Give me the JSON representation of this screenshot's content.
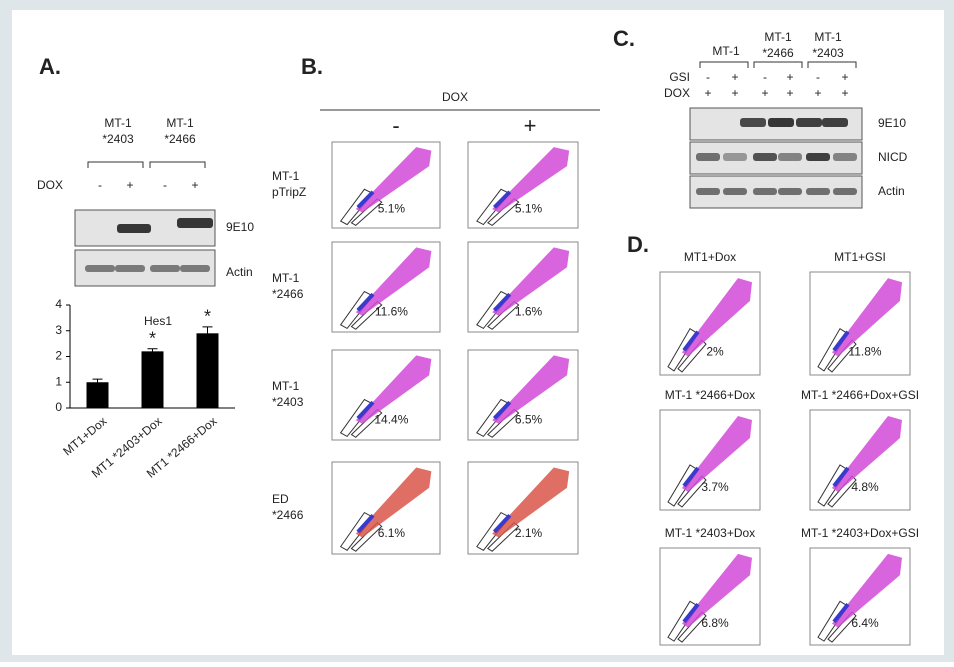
{
  "chart_data": {
    "type": "bar",
    "title": "Hes1",
    "categories": [
      "MT1+Dox",
      "MT1 *2403+Dox",
      "MT1 *2466+Dox"
    ],
    "values": [
      1,
      2.2,
      2.9
    ],
    "errors": [
      0.12,
      0.1,
      0.25
    ],
    "annotations": [
      null,
      "*",
      "*"
    ],
    "ylim": [
      0,
      4
    ],
    "yticks": [
      0,
      1,
      2,
      3,
      4
    ],
    "color": "#000000"
  },
  "panel_a": {
    "label": "A.",
    "lanes": [
      [
        "MT-1",
        "*2403"
      ],
      [
        "MT-1",
        "*2466"
      ]
    ],
    "treatment": "DOX",
    "signs": [
      "-",
      "+",
      "-",
      "+"
    ],
    "blots": [
      "9E10",
      "Actin"
    ]
  },
  "panel_b": {
    "label": "B.",
    "treatment": "DOX",
    "columns": [
      "-",
      "+"
    ],
    "rows": [
      {
        "label": [
          "MT-1",
          "pTripZ"
        ],
        "values": [
          "5.1%",
          "5.1%"
        ],
        "color": "#d24ad8"
      },
      {
        "label": [
          "MT-1",
          "*2466"
        ],
        "values": [
          "11.6%",
          "1.6%"
        ],
        "color": "#d24ad8"
      },
      {
        "label": [
          "MT-1",
          "*2403"
        ],
        "values": [
          "14.4%",
          "6.5%"
        ],
        "color": "#d24ad8"
      },
      {
        "label": [
          "ED",
          "*2466"
        ],
        "values": [
          "6.1%",
          "2.1%"
        ],
        "color": "#d9564a"
      }
    ]
  },
  "panel_c": {
    "label": "C.",
    "groups": [
      [
        "MT-1"
      ],
      [
        "MT-1",
        "*2466"
      ],
      [
        "MT-1",
        "*2403"
      ]
    ],
    "rows": [
      {
        "name": "GSI",
        "signs": [
          "-",
          "+",
          "-",
          "+",
          "-",
          "+"
        ]
      },
      {
        "name": "DOX",
        "signs": [
          "+",
          "+",
          "+",
          "+",
          "+",
          "+"
        ]
      }
    ],
    "blots": [
      "9E10",
      "NICD",
      "Actin"
    ]
  },
  "panel_d": {
    "label": "D.",
    "plots": [
      {
        "title": "MT1+Dox",
        "value": "2%"
      },
      {
        "title": "MT1+GSI",
        "value": "11.8%"
      },
      {
        "title": "MT-1 *2466+Dox",
        "value": "3.7%"
      },
      {
        "title": "MT-1 *2466+Dox+GSI",
        "value": "4.8%"
      },
      {
        "title": "MT-1 *2403+Dox",
        "value": "6.8%"
      },
      {
        "title": "MT-1 *2403+Dox+GSI",
        "value": "6.4%"
      }
    ]
  }
}
